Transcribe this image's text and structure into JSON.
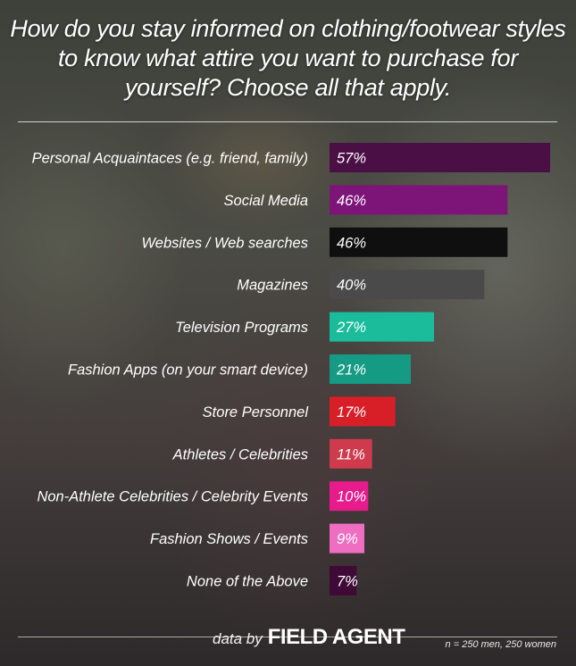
{
  "title": "How do you stay informed on clothing/footwear styles to know what attire you want to purchase for yourself? Choose all that apply.",
  "footer": {
    "data_by": "data by",
    "brand": "FIELD AGENT",
    "sample_note": "n = 250 men, 250 women"
  },
  "chart_data": {
    "type": "bar",
    "orientation": "horizontal",
    "title": "How do you stay informed on clothing/footwear styles to know what attire you want to purchase for yourself? Choose all that apply.",
    "categories": [
      "Personal Acquaintaces (e.g. friend, family)",
      "Social Media",
      "Websites / Web searches",
      "Magazines",
      "Television Programs",
      "Fashion Apps (on your smart device)",
      "Store Personnel",
      "Athletes / Celebrities",
      "Non-Athlete Celebrities / Celebrity Events",
      "Fashion Shows / Events",
      "None of the Above"
    ],
    "values": [
      57,
      46,
      46,
      40,
      27,
      21,
      17,
      11,
      10,
      9,
      7
    ],
    "value_labels": [
      "57%",
      "46%",
      "46%",
      "40%",
      "27%",
      "21%",
      "17%",
      "11%",
      "10%",
      "9%",
      "7%"
    ],
    "colors": [
      "#4a1046",
      "#7d1478",
      "#0f0f0f",
      "#4a4a4a",
      "#1abc9c",
      "#159a84",
      "#d81f28",
      "#cf3b4d",
      "#e81b8c",
      "#ef6ec2",
      "#3f0a36"
    ],
    "xlim": [
      0,
      57
    ],
    "grid": false,
    "legend": "none"
  }
}
